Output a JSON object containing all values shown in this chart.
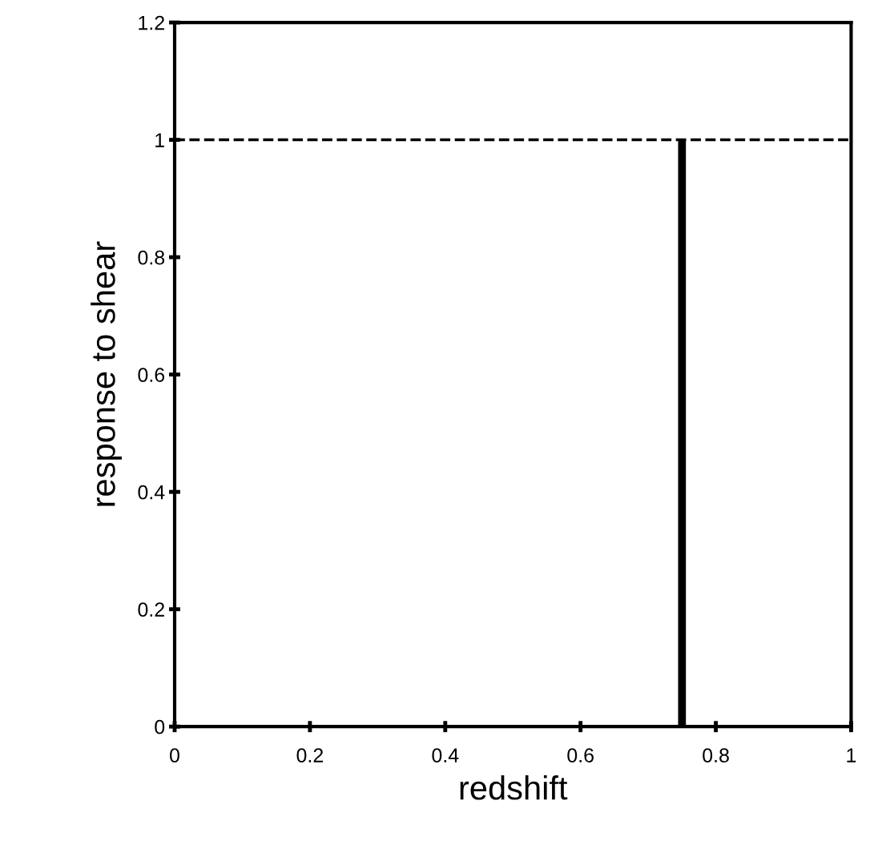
{
  "chart_data": {
    "type": "line",
    "xlabel": "redshift",
    "ylabel": "response to shear",
    "series": [
      {
        "color": "#000000",
        "x": [
          0.75,
          0.75
        ],
        "values": [
          0,
          1
        ]
      }
    ],
    "xlim": [
      0,
      1
    ],
    "ylim": [
      0,
      1.2
    ],
    "xticks": [
      0,
      0.2,
      0.4,
      0.6,
      0.8,
      1
    ],
    "yticks": [
      0,
      0.2,
      0.4,
      0.6,
      0.8,
      1,
      1.2
    ],
    "ref_lines": [
      {
        "axis": "y",
        "value": 1,
        "color": "#000000",
        "line_style": "dashed"
      }
    ],
    "grid": false,
    "marker": "none",
    "line_style": "solid"
  }
}
